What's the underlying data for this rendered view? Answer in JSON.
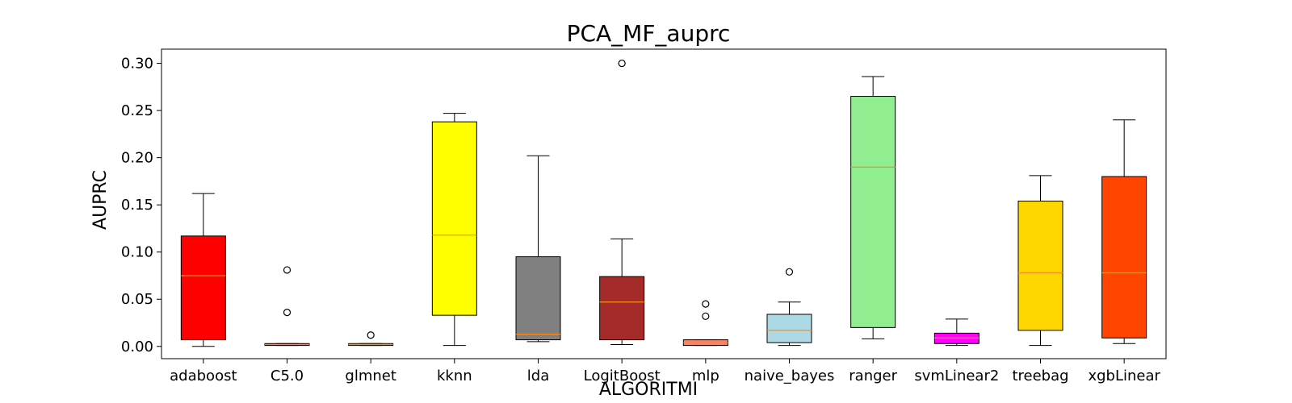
{
  "chart_data": {
    "type": "box",
    "title": "PCA_MF_auprc",
    "xlabel": "ALGORITMI",
    "ylabel": "AUPRC",
    "ylim": [
      -0.013,
      0.315
    ],
    "yticks": [
      "0.00",
      "0.05",
      "0.10",
      "0.15",
      "0.20",
      "0.25",
      "0.30"
    ],
    "grid": false,
    "median_color": "#ff8c1a",
    "series": [
      {
        "category": "adaboost",
        "color": "#ff0000",
        "whisker_low": 0.0,
        "q1": 0.007,
        "median": 0.075,
        "q3": 0.117,
        "whisker_high": 0.162,
        "outliers": []
      },
      {
        "category": "C5.0",
        "color": "#ff0000",
        "whisker_low": 0.001,
        "q1": 0.001,
        "median": 0.002,
        "q3": 0.003,
        "whisker_high": 0.003,
        "outliers": [
          0.036,
          0.081
        ]
      },
      {
        "category": "glmnet",
        "color": "#ffa500",
        "whisker_low": 0.001,
        "q1": 0.001,
        "median": 0.002,
        "q3": 0.003,
        "whisker_high": 0.003,
        "outliers": [
          0.012
        ]
      },
      {
        "category": "kknn",
        "color": "#ffff00",
        "whisker_low": 0.001,
        "q1": 0.033,
        "median": 0.118,
        "q3": 0.238,
        "whisker_high": 0.247,
        "outliers": []
      },
      {
        "category": "lda",
        "color": "#808080",
        "whisker_low": 0.005,
        "q1": 0.007,
        "median": 0.013,
        "q3": 0.095,
        "whisker_high": 0.202,
        "outliers": []
      },
      {
        "category": "LogitBoost",
        "color": "#a52a2a",
        "whisker_low": 0.002,
        "q1": 0.007,
        "median": 0.047,
        "q3": 0.074,
        "whisker_high": 0.114,
        "outliers": [
          0.3
        ]
      },
      {
        "category": "mlp",
        "color": "#fa8072",
        "whisker_low": 0.001,
        "q1": 0.001,
        "median": 0.004,
        "q3": 0.007,
        "whisker_high": 0.007,
        "outliers": [
          0.032,
          0.045
        ]
      },
      {
        "category": "naive_bayes",
        "color": "#add8e6",
        "whisker_low": 0.001,
        "q1": 0.004,
        "median": 0.017,
        "q3": 0.034,
        "whisker_high": 0.047,
        "outliers": [
          0.079
        ]
      },
      {
        "category": "ranger",
        "color": "#90ee90",
        "whisker_low": 0.008,
        "q1": 0.02,
        "median": 0.19,
        "q3": 0.265,
        "whisker_high": 0.286,
        "outliers": []
      },
      {
        "category": "svmLinear2",
        "color": "#ff00ff",
        "whisker_low": 0.001,
        "q1": 0.003,
        "median": 0.009,
        "q3": 0.014,
        "whisker_high": 0.029,
        "outliers": []
      },
      {
        "category": "treebag",
        "color": "#ffd700",
        "whisker_low": 0.001,
        "q1": 0.017,
        "median": 0.078,
        "q3": 0.154,
        "whisker_high": 0.181,
        "outliers": []
      },
      {
        "category": "xgbLinear",
        "color": "#ff4500",
        "whisker_low": 0.003,
        "q1": 0.009,
        "median": 0.078,
        "q3": 0.18,
        "whisker_high": 0.24,
        "outliers": []
      }
    ]
  }
}
